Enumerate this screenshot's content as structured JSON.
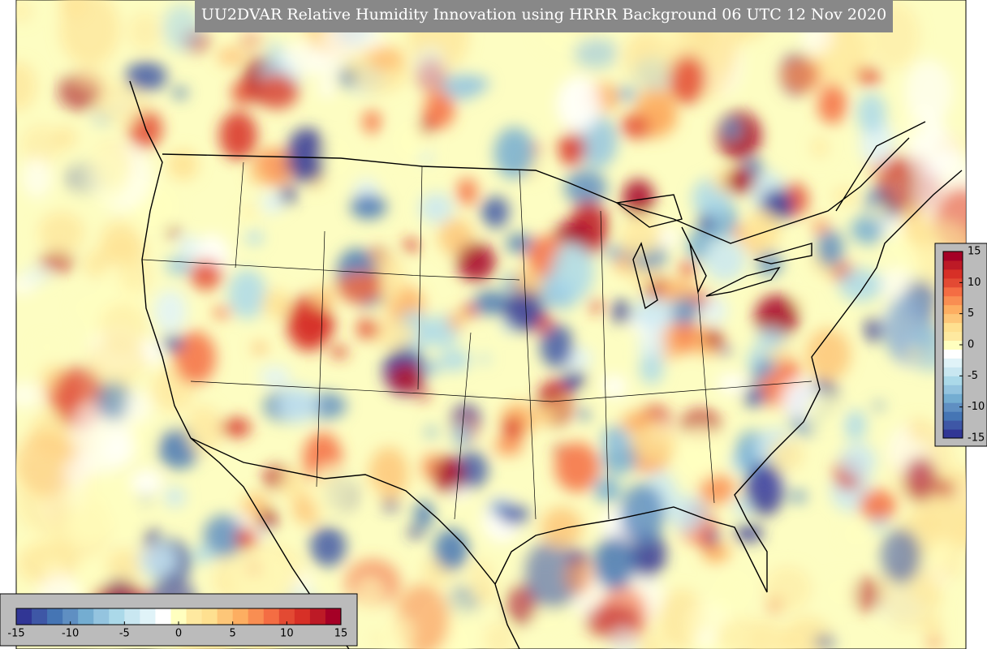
{
  "title": "UU2DVAR Relative Humidity Innovation using HRRR Background 06 UTC 12 Nov 2020",
  "colors": [
    "#313695",
    "#3e57a6",
    "#4575b4",
    "#5f8fc2",
    "#74add1",
    "#94c4df",
    "#abd9e9",
    "#c9e7f1",
    "#e0f3f8",
    "#ffffff",
    "#ffffbf",
    "#fee9a0",
    "#fee090",
    "#fdc678",
    "#fdae61",
    "#f98e52",
    "#f46d43",
    "#e34a33",
    "#d73027",
    "#bd1a26",
    "#a50026"
  ],
  "colorbars": [
    {
      "orientation": "vertical",
      "range": [
        -15,
        15
      ],
      "ticks": [
        -15,
        -10,
        -5,
        0,
        5,
        10,
        15
      ]
    },
    {
      "orientation": "horizontal",
      "range": [
        -15,
        15
      ],
      "ticks": [
        -15,
        -10,
        -5,
        0,
        5,
        10,
        15
      ]
    }
  ]
}
